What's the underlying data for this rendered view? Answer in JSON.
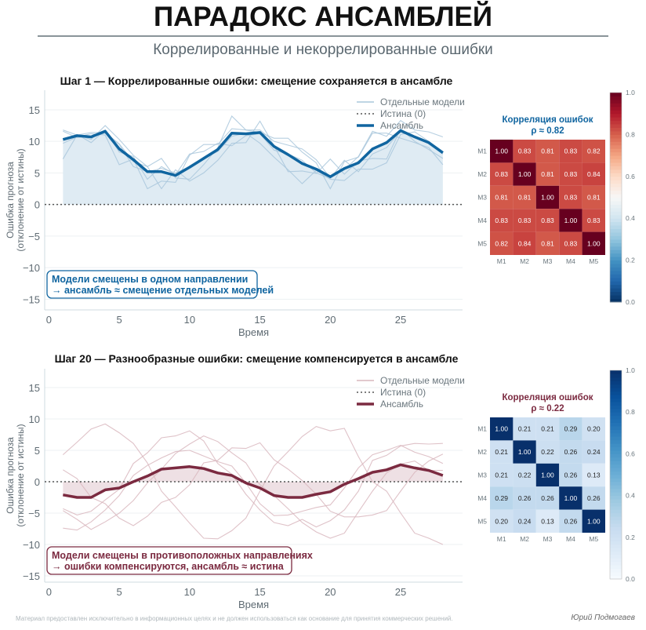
{
  "title": "ПАРАДОКС АНСАМБЛЕЙ",
  "subtitle": "Коррелированные и некоррелированные ошибки",
  "footer": "Материал предоставлен исключительно в информационных целях и не должен использоваться как основание для принятия коммерческих решений.",
  "author": "Юрий Подмогаев",
  "chart_data": [
    {
      "type": "line",
      "title": "Шаг 1 — Коррелированные ошибки: смещение сохраняется в ансамбле",
      "xlabel": "Время",
      "ylabel": [
        "Ошибка прогноза",
        "(отклонение от истины)"
      ],
      "xlim": [
        -0.3,
        29.4
      ],
      "ylim": [
        -16.7,
        18.1
      ],
      "xticks": [
        0,
        5,
        10,
        15,
        20,
        25
      ],
      "yticks": [
        -15,
        -10,
        -5,
        0,
        5,
        10,
        15
      ],
      "grid": true,
      "legend_position": "top-right",
      "legend": [
        "Отдельные модели",
        "Истина (0)",
        "Ансамбль"
      ],
      "color": "#1065a0",
      "annotation": [
        "Модели смещены в одном направлении",
        "→ ансамбль ≈ смещение отдельных моделей"
      ],
      "x": [
        1,
        2,
        3,
        4,
        5,
        6,
        7,
        8,
        9,
        10,
        11,
        12,
        13,
        14,
        15,
        16,
        17,
        18,
        19,
        20,
        21,
        22,
        23,
        24,
        25,
        26,
        27,
        28
      ],
      "models": [
        [
          11.8,
          11.0,
          10.3,
          12.5,
          10.3,
          7.8,
          6.0,
          7.3,
          4.2,
          4.0,
          6.3,
          9.0,
          14.0,
          11.8,
          11.8,
          10.0,
          9.4,
          8.8,
          7.1,
          4.2,
          5.5,
          7.6,
          11.6,
          10.8,
          13.3,
          11.8,
          11.5,
          10.7
        ],
        [
          9.7,
          10.7,
          11.2,
          11.0,
          6.3,
          7.2,
          2.5,
          3.7,
          3.5,
          7.8,
          9.5,
          9.5,
          12.0,
          11.8,
          11.4,
          10.5,
          10.5,
          8.3,
          6.6,
          2.5,
          6.8,
          7.5,
          11.3,
          11.3,
          10.5,
          9.8,
          9.0,
          6.3
        ],
        [
          7.2,
          11.0,
          11.4,
          11.4,
          9.6,
          6.8,
          6.0,
          2.5,
          5.5,
          3.7,
          5.0,
          7.0,
          9.7,
          9.8,
          13.2,
          9.3,
          5.2,
          5.3,
          4.9,
          7.2,
          4.8,
          6.9,
          7.3,
          7.2,
          12.0,
          10.0,
          8.7,
          7.3
        ],
        [
          11.6,
          10.6,
          10.8,
          11.3,
          9.5,
          6.0,
          5.2,
          5.7,
          5.0,
          6.0,
          7.3,
          8.4,
          10.8,
          11.3,
          9.7,
          7.5,
          5.5,
          3.3,
          5.4,
          4.0,
          3.8,
          5.6,
          5.6,
          6.6,
          11.1,
          11.5,
          10.0,
          8.0
        ],
        [
          10.4,
          11.1,
          9.8,
          11.8,
          8.3,
          7.6,
          4.0,
          6.0,
          4.7,
          8.0,
          8.4,
          9.7,
          9.3,
          10.9,
          11.2,
          8.6,
          8.0,
          7.0,
          5.0,
          4.1,
          7.0,
          5.2,
          8.0,
          9.0,
          11.7,
          10.6,
          9.7,
          8.0
        ]
      ],
      "ensemble": [
        10.3,
        10.9,
        10.7,
        11.6,
        8.8,
        7.1,
        5.2,
        5.2,
        4.6,
        5.9,
        7.3,
        8.7,
        11.3,
        11.2,
        11.4,
        9.2,
        7.9,
        6.5,
        5.6,
        4.4,
        5.7,
        6.6,
        8.8,
        9.8,
        11.7,
        10.7,
        9.8,
        8.2
      ],
      "heatmap": {
        "type": "heatmap",
        "title": [
          "Корреляция ошибок",
          "ρ ≈ 0.82"
        ],
        "labels": [
          "M1",
          "M2",
          "M3",
          "M4",
          "M5"
        ],
        "values": [
          [
            1.0,
            0.83,
            0.81,
            0.83,
            0.82
          ],
          [
            0.83,
            1.0,
            0.81,
            0.83,
            0.84
          ],
          [
            0.81,
            0.81,
            1.0,
            0.83,
            0.81
          ],
          [
            0.83,
            0.83,
            0.83,
            1.0,
            0.83
          ],
          [
            0.82,
            0.84,
            0.81,
            0.83,
            1.0
          ]
        ],
        "colormap": "RdBu_r",
        "colorbar_ticks": [
          "0.0",
          "0.2",
          "0.4",
          "0.6",
          "0.8",
          "1.0"
        ],
        "range": [
          0,
          1
        ]
      }
    },
    {
      "type": "line",
      "title": "Шаг 20 — Разнообразные ошибки: смещение компенсируется в ансамбле",
      "xlabel": "Время",
      "ylabel": [
        "Ошибка прогноза",
        "(отклонение от истины)"
      ],
      "xlim": [
        -0.3,
        29.4
      ],
      "ylim": [
        -16,
        18
      ],
      "xticks": [
        0,
        5,
        10,
        15,
        20,
        25
      ],
      "yticks": [
        -15,
        -10,
        -5,
        0,
        5,
        10,
        15
      ],
      "grid": true,
      "legend_position": "top-right",
      "legend": [
        "Отдельные модели",
        "Истина (0)",
        "Ансамбль"
      ],
      "color": "#7b2a40",
      "annotation": [
        "Модели смещены в противоположных направлениях",
        "→ ошибки компенсируются, ансамбль ≈ истина"
      ],
      "x": [
        1,
        2,
        3,
        4,
        5,
        6,
        7,
        8,
        9,
        10,
        11,
        12,
        13,
        14,
        15,
        16,
        17,
        18,
        19,
        20,
        21,
        22,
        23,
        24,
        25,
        26,
        27,
        28
      ],
      "models": [
        [
          4.3,
          6.3,
          8.4,
          9.2,
          7.8,
          6.1,
          3.0,
          -1.5,
          -4.0,
          -6.6,
          -9.0,
          -9.1,
          -7.8,
          -5.8,
          -1.5,
          2.5,
          4.8,
          7.2,
          8.8,
          8.1,
          8.5,
          4.0,
          0.0,
          -1.5,
          -5.0,
          -8.2,
          -9.0,
          -10.0
        ],
        [
          1.9,
          0.5,
          -2.5,
          -3.5,
          -5.8,
          -7.0,
          -5.5,
          -3.3,
          -2.5,
          -0.5,
          3.0,
          3.4,
          5.4,
          5.3,
          6.2,
          3.5,
          2.0,
          0.2,
          -2.0,
          -4.7,
          -5.6,
          -5.6,
          -5.3,
          -4.6,
          -1.5,
          1.5,
          3.3,
          4.4
        ],
        [
          -4.3,
          -5.3,
          -4.7,
          -2.9,
          -1.2,
          2.9,
          4.6,
          7.0,
          7.3,
          8.1,
          6.5,
          2.9,
          1.2,
          -2.0,
          -4.5,
          -6.5,
          -7.0,
          -6.0,
          -7.2,
          -6.2,
          -4.5,
          -1.5,
          3.4,
          4.2,
          5.7,
          6.1,
          6.0,
          6.1
        ],
        [
          -7.4,
          -7.7,
          -6.4,
          -4.5,
          -2.2,
          1.0,
          2.6,
          3.8,
          4.8,
          5.0,
          4.1,
          3.2,
          2.5,
          -0.2,
          -3.5,
          -5.4,
          -5.3,
          -4.7,
          -4.1,
          -3.7,
          -1.0,
          2.2,
          4.3,
          5.0,
          5.8,
          4.7,
          4.0,
          2.9
        ],
        [
          -4.6,
          -6.0,
          -7.6,
          -6.4,
          -5.0,
          -3.0,
          -0.2,
          2.0,
          4.5,
          6.0,
          7.3,
          6.4,
          4.6,
          3.0,
          -0.5,
          -2.2,
          -4.3,
          -6.5,
          -8.0,
          -9.0,
          -8.2,
          -4.8,
          -1.5,
          1.4,
          2.8,
          3.3,
          1.8,
          1.8
        ]
      ],
      "ensemble": [
        -2.1,
        -2.5,
        -2.5,
        -1.3,
        -1.0,
        0.0,
        0.9,
        2.0,
        2.2,
        2.4,
        2.1,
        1.4,
        1.0,
        -0.2,
        -1.0,
        -2.2,
        -2.5,
        -2.5,
        -2.0,
        -1.6,
        -0.4,
        0.5,
        1.5,
        1.9,
        2.7,
        2.2,
        1.8,
        1.0
      ],
      "heatmap": {
        "type": "heatmap",
        "title": [
          "Корреляция ошибок",
          "ρ ≈ 0.22"
        ],
        "labels": [
          "M1",
          "M2",
          "M3",
          "M4",
          "M5"
        ],
        "values": [
          [
            1.0,
            0.21,
            0.21,
            0.29,
            0.2
          ],
          [
            0.21,
            1.0,
            0.22,
            0.26,
            0.24
          ],
          [
            0.21,
            0.22,
            1.0,
            0.26,
            0.13
          ],
          [
            0.29,
            0.26,
            0.26,
            1.0,
            0.26
          ],
          [
            0.2,
            0.24,
            0.13,
            0.26,
            1.0
          ]
        ],
        "colormap": "Blues",
        "colorbar_ticks": [
          "0.0",
          "0.2",
          "0.4",
          "0.6",
          "0.8",
          "1.0"
        ],
        "range": [
          0,
          1
        ]
      }
    }
  ]
}
